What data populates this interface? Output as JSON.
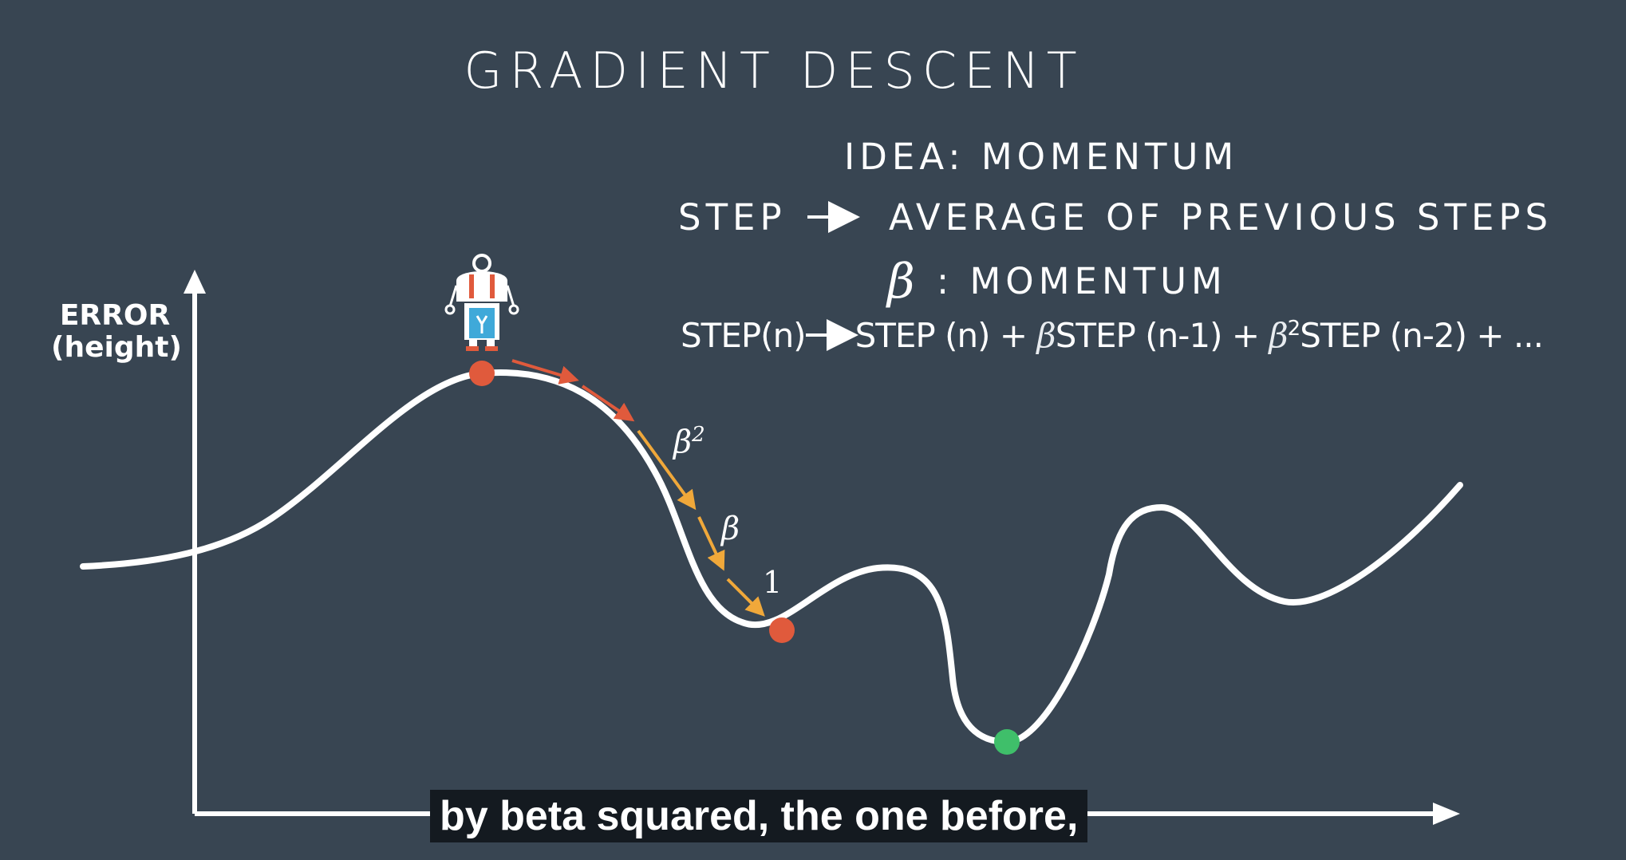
{
  "title": "GRADIENT DESCENT",
  "idea": "IDEA: MOMENTUM",
  "step_line": {
    "left": "STEP",
    "right": "AVERAGE OF PREVIOUS STEPS"
  },
  "beta_line": {
    "symbol": "β",
    "label": ": MOMENTUM"
  },
  "formula": {
    "lhs": "STEP(n)",
    "t1": "STEP (n) + ",
    "beta": "β",
    "t2": "STEP (n-1) + ",
    "beta2": "β",
    "exp": "2",
    "t3": "STEP (n-2) + ..."
  },
  "axis": {
    "ylabel_line1": "ERROR",
    "ylabel_line2": "(height)"
  },
  "step_labels": {
    "beta": "β",
    "beta_sq_exp": "2",
    "one": "1"
  },
  "caption": "by beta squared, the one before,",
  "colors": {
    "background": "#384552",
    "curve": "#ffffff",
    "start_point": "#e05a3c",
    "end_point": "#e05a3c",
    "minimum_point": "#3fbf6a",
    "arrow_early": "#e05a3c",
    "arrow_late": "#f0a83a",
    "robot_body": "#3fa9d9",
    "robot_accent": "#e05a3c"
  },
  "icons": {
    "robot": "robot-icon"
  }
}
